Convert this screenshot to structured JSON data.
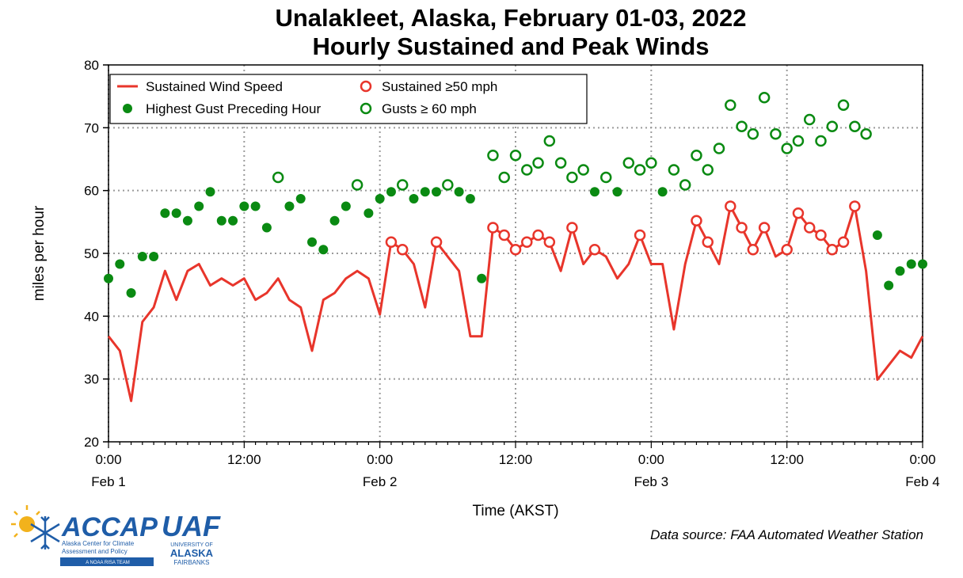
{
  "chart_data": {
    "type": "line+scatter",
    "title": "Unalakleet, Alaska, February 01-03, 2022",
    "subtitle": "Hourly Sustained and Peak Winds",
    "xlabel": "Time (AKST)",
    "ylabel": "miles per hour",
    "ylim": [
      20,
      80
    ],
    "xlim_hours": [
      0,
      72
    ],
    "yticks": [
      20,
      30,
      40,
      50,
      60,
      70,
      80
    ],
    "xticks": [
      {
        "hour": 0,
        "time": "0:00",
        "date": "Feb 1"
      },
      {
        "hour": 12,
        "time": "12:00",
        "date": ""
      },
      {
        "hour": 24,
        "time": "0:00",
        "date": "Feb 2"
      },
      {
        "hour": 36,
        "time": "12:00",
        "date": ""
      },
      {
        "hour": 48,
        "time": "0:00",
        "date": "Feb 3"
      },
      {
        "hour": 60,
        "time": "12:00",
        "date": ""
      },
      {
        "hour": 72,
        "time": "0:00",
        "date": "Feb 4"
      }
    ],
    "grid": true,
    "legend_position": "top-left",
    "legend": [
      {
        "label": "Sustained Wind Speed",
        "marker": "line",
        "color": "#e8352b"
      },
      {
        "label": "Sustained ≥50 mph",
        "marker": "open-circle",
        "color": "#e8352b"
      },
      {
        "label": "Highest Gust Preceding Hour",
        "marker": "filled-circle",
        "color": "#0a8a12"
      },
      {
        "label": "Gusts ≥ 60 mph",
        "marker": "open-circle",
        "color": "#0a8a12"
      }
    ],
    "sustained_threshold": 50,
    "gust_threshold": 60,
    "sustained": {
      "name": "Sustained Wind Speed",
      "x": [
        0,
        1,
        2,
        3,
        4,
        5,
        6,
        7,
        8,
        9,
        10,
        11,
        12,
        13,
        14,
        15,
        16,
        17,
        18,
        19,
        20,
        21,
        22,
        23,
        24,
        25,
        26,
        27,
        28,
        29,
        30,
        31,
        32,
        33,
        34,
        35,
        36,
        37,
        38,
        39,
        40,
        41,
        42,
        43,
        44,
        45,
        46,
        47,
        48,
        49,
        50,
        51,
        52,
        53,
        54,
        55,
        56,
        57,
        58,
        59,
        60,
        61,
        62,
        63,
        64,
        65,
        66,
        67,
        68,
        69,
        70,
        71,
        72
      ],
      "values": [
        36.8,
        34.5,
        26.5,
        39.1,
        41.4,
        47.2,
        42.6,
        47.2,
        48.3,
        44.9,
        46.0,
        44.9,
        46.0,
        42.6,
        43.7,
        46.0,
        42.6,
        41.4,
        34.5,
        42.6,
        43.7,
        46.0,
        47.2,
        46.0,
        40.3,
        51.8,
        50.6,
        48.3,
        41.4,
        51.8,
        49.5,
        47.2,
        36.8,
        36.8,
        54.1,
        52.9,
        50.6,
        51.8,
        52.9,
        51.8,
        47.2,
        54.1,
        48.3,
        50.6,
        49.5,
        46.0,
        48.3,
        52.9,
        48.3,
        48.3,
        37.9,
        48.3,
        55.2,
        51.8,
        48.3,
        57.5,
        54.1,
        50.6,
        54.1,
        49.5,
        50.6,
        56.4,
        54.1,
        52.9,
        50.6,
        51.8,
        57.5,
        47.2,
        29.9,
        32.2,
        34.5,
        33.4,
        36.8
      ]
    },
    "gusts": {
      "name": "Highest Gust Preceding Hour",
      "x": [
        0,
        1,
        2,
        3,
        4,
        5,
        6,
        7,
        8,
        9,
        10,
        11,
        12,
        13,
        14,
        15,
        16,
        17,
        18,
        19,
        20,
        21,
        22,
        23,
        24,
        25,
        26,
        27,
        28,
        29,
        30,
        31,
        32,
        33,
        34,
        35,
        36,
        37,
        38,
        39,
        40,
        41,
        42,
        43,
        44,
        45,
        46,
        47,
        48,
        49,
        50,
        51,
        52,
        53,
        54,
        55,
        56,
        57,
        58,
        59,
        60,
        61,
        62,
        63,
        64,
        65,
        66,
        67,
        68,
        69,
        70,
        71,
        72
      ],
      "values": [
        46.0,
        48.3,
        43.7,
        49.5,
        49.5,
        56.4,
        56.4,
        55.2,
        57.5,
        59.8,
        55.2,
        55.2,
        57.5,
        57.5,
        54.1,
        62.1,
        57.5,
        58.7,
        51.8,
        50.6,
        55.2,
        57.5,
        60.9,
        56.4,
        58.7,
        59.8,
        60.9,
        58.7,
        59.8,
        59.8,
        60.9,
        59.8,
        58.7,
        46.0,
        65.6,
        62.1,
        65.6,
        63.3,
        64.4,
        67.9,
        64.4,
        62.1,
        63.3,
        59.8,
        62.1,
        59.8,
        64.4,
        63.3,
        64.4,
        59.8,
        63.3,
        60.9,
        65.6,
        63.3,
        66.7,
        73.6,
        70.2,
        69.0,
        74.8,
        69.0,
        66.7,
        67.9,
        71.3,
        67.9,
        70.2,
        73.6,
        70.2,
        69.0,
        52.9,
        44.9,
        47.2,
        48.3,
        48.3
      ]
    }
  },
  "footer": {
    "source": "Data source: FAA Automated Weather Station",
    "logo_accap": "ACCAP",
    "logo_accap_sub1": "Alaska Center for Climate",
    "logo_accap_sub2": "Assessment and Policy",
    "logo_accap_sub3": "A NOAA RISA TEAM",
    "logo_uaf": "UAF",
    "logo_uaf_sub1": "UNIVERSITY OF",
    "logo_uaf_sub2": "ALASKA",
    "logo_uaf_sub3": "FAIRBANKS"
  },
  "colors": {
    "sustained": "#e8352b",
    "gust": "#0a8a12",
    "logo_blue": "#1f5da8",
    "logo_gold": "#f2b21c"
  }
}
